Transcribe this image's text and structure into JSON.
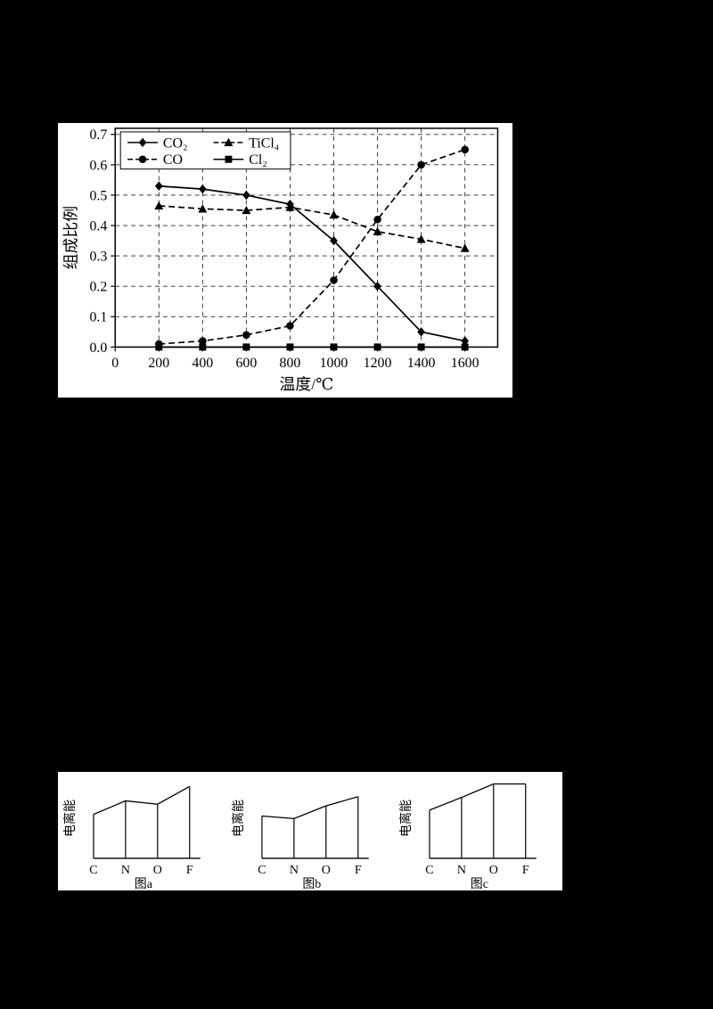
{
  "page": {
    "background": "#000000",
    "panel_background": "#ffffff",
    "ink": "#000000"
  },
  "composition_chart": {
    "xlabel": "温度/℃",
    "ylabel": "组成比例"
  },
  "mini_charts_panel": {
    "ylabel": "电离能",
    "captions": [
      "图a",
      "图b",
      "图c"
    ]
  },
  "chart_data": [
    {
      "type": "line",
      "title": "",
      "xlabel": "温度/℃",
      "ylabel": "组成比例",
      "x_ticks": [
        0,
        200,
        400,
        600,
        800,
        1000,
        1200,
        1400,
        1600
      ],
      "y_ticks": [
        "0.0",
        "0.1",
        "0.2",
        "0.3",
        "0.4",
        "0.5",
        "0.6",
        "0.7"
      ],
      "xlim": [
        0,
        1750
      ],
      "ylim": [
        0,
        0.72
      ],
      "grid": "dashed",
      "legend_position": "top-left",
      "x": [
        200,
        400,
        600,
        800,
        1000,
        1200,
        1400,
        1600
      ],
      "series": [
        {
          "name": "co2",
          "label": "CO₂",
          "marker": "diamond",
          "line": "solid",
          "values": [
            0.53,
            0.52,
            0.5,
            0.47,
            0.35,
            0.2,
            0.05,
            0.02
          ]
        },
        {
          "name": "co",
          "label": "CO",
          "marker": "circle",
          "line": "dashed",
          "values": [
            0.01,
            0.02,
            0.04,
            0.07,
            0.22,
            0.42,
            0.6,
            0.65
          ]
        },
        {
          "name": "ticl4",
          "label": "TiCl₄",
          "marker": "triangle",
          "line": "dashed",
          "values": [
            0.465,
            0.455,
            0.45,
            0.46,
            0.435,
            0.38,
            0.355,
            0.325
          ]
        },
        {
          "name": "cl2",
          "label": "Cl₂",
          "marker": "square",
          "line": "solid",
          "values": [
            0.0,
            0.0,
            0.0,
            0.0,
            0.0,
            0.0,
            0.0,
            0.0
          ]
        }
      ]
    },
    {
      "type": "line",
      "style": "droplines",
      "caption": "图a",
      "ylabel": "电离能",
      "categories": [
        "C",
        "N",
        "O",
        "F"
      ],
      "values": [
        0.52,
        0.68,
        0.64,
        0.85
      ]
    },
    {
      "type": "line",
      "style": "droplines",
      "caption": "图b",
      "ylabel": "电离能",
      "categories": [
        "C",
        "N",
        "O",
        "F"
      ],
      "values": [
        0.5,
        0.47,
        0.62,
        0.73
      ]
    },
    {
      "type": "line",
      "style": "droplines",
      "caption": "图c",
      "ylabel": "电离能",
      "categories": [
        "C",
        "N",
        "O",
        "F"
      ],
      "values": [
        0.57,
        0.72,
        0.88,
        0.88
      ]
    }
  ]
}
